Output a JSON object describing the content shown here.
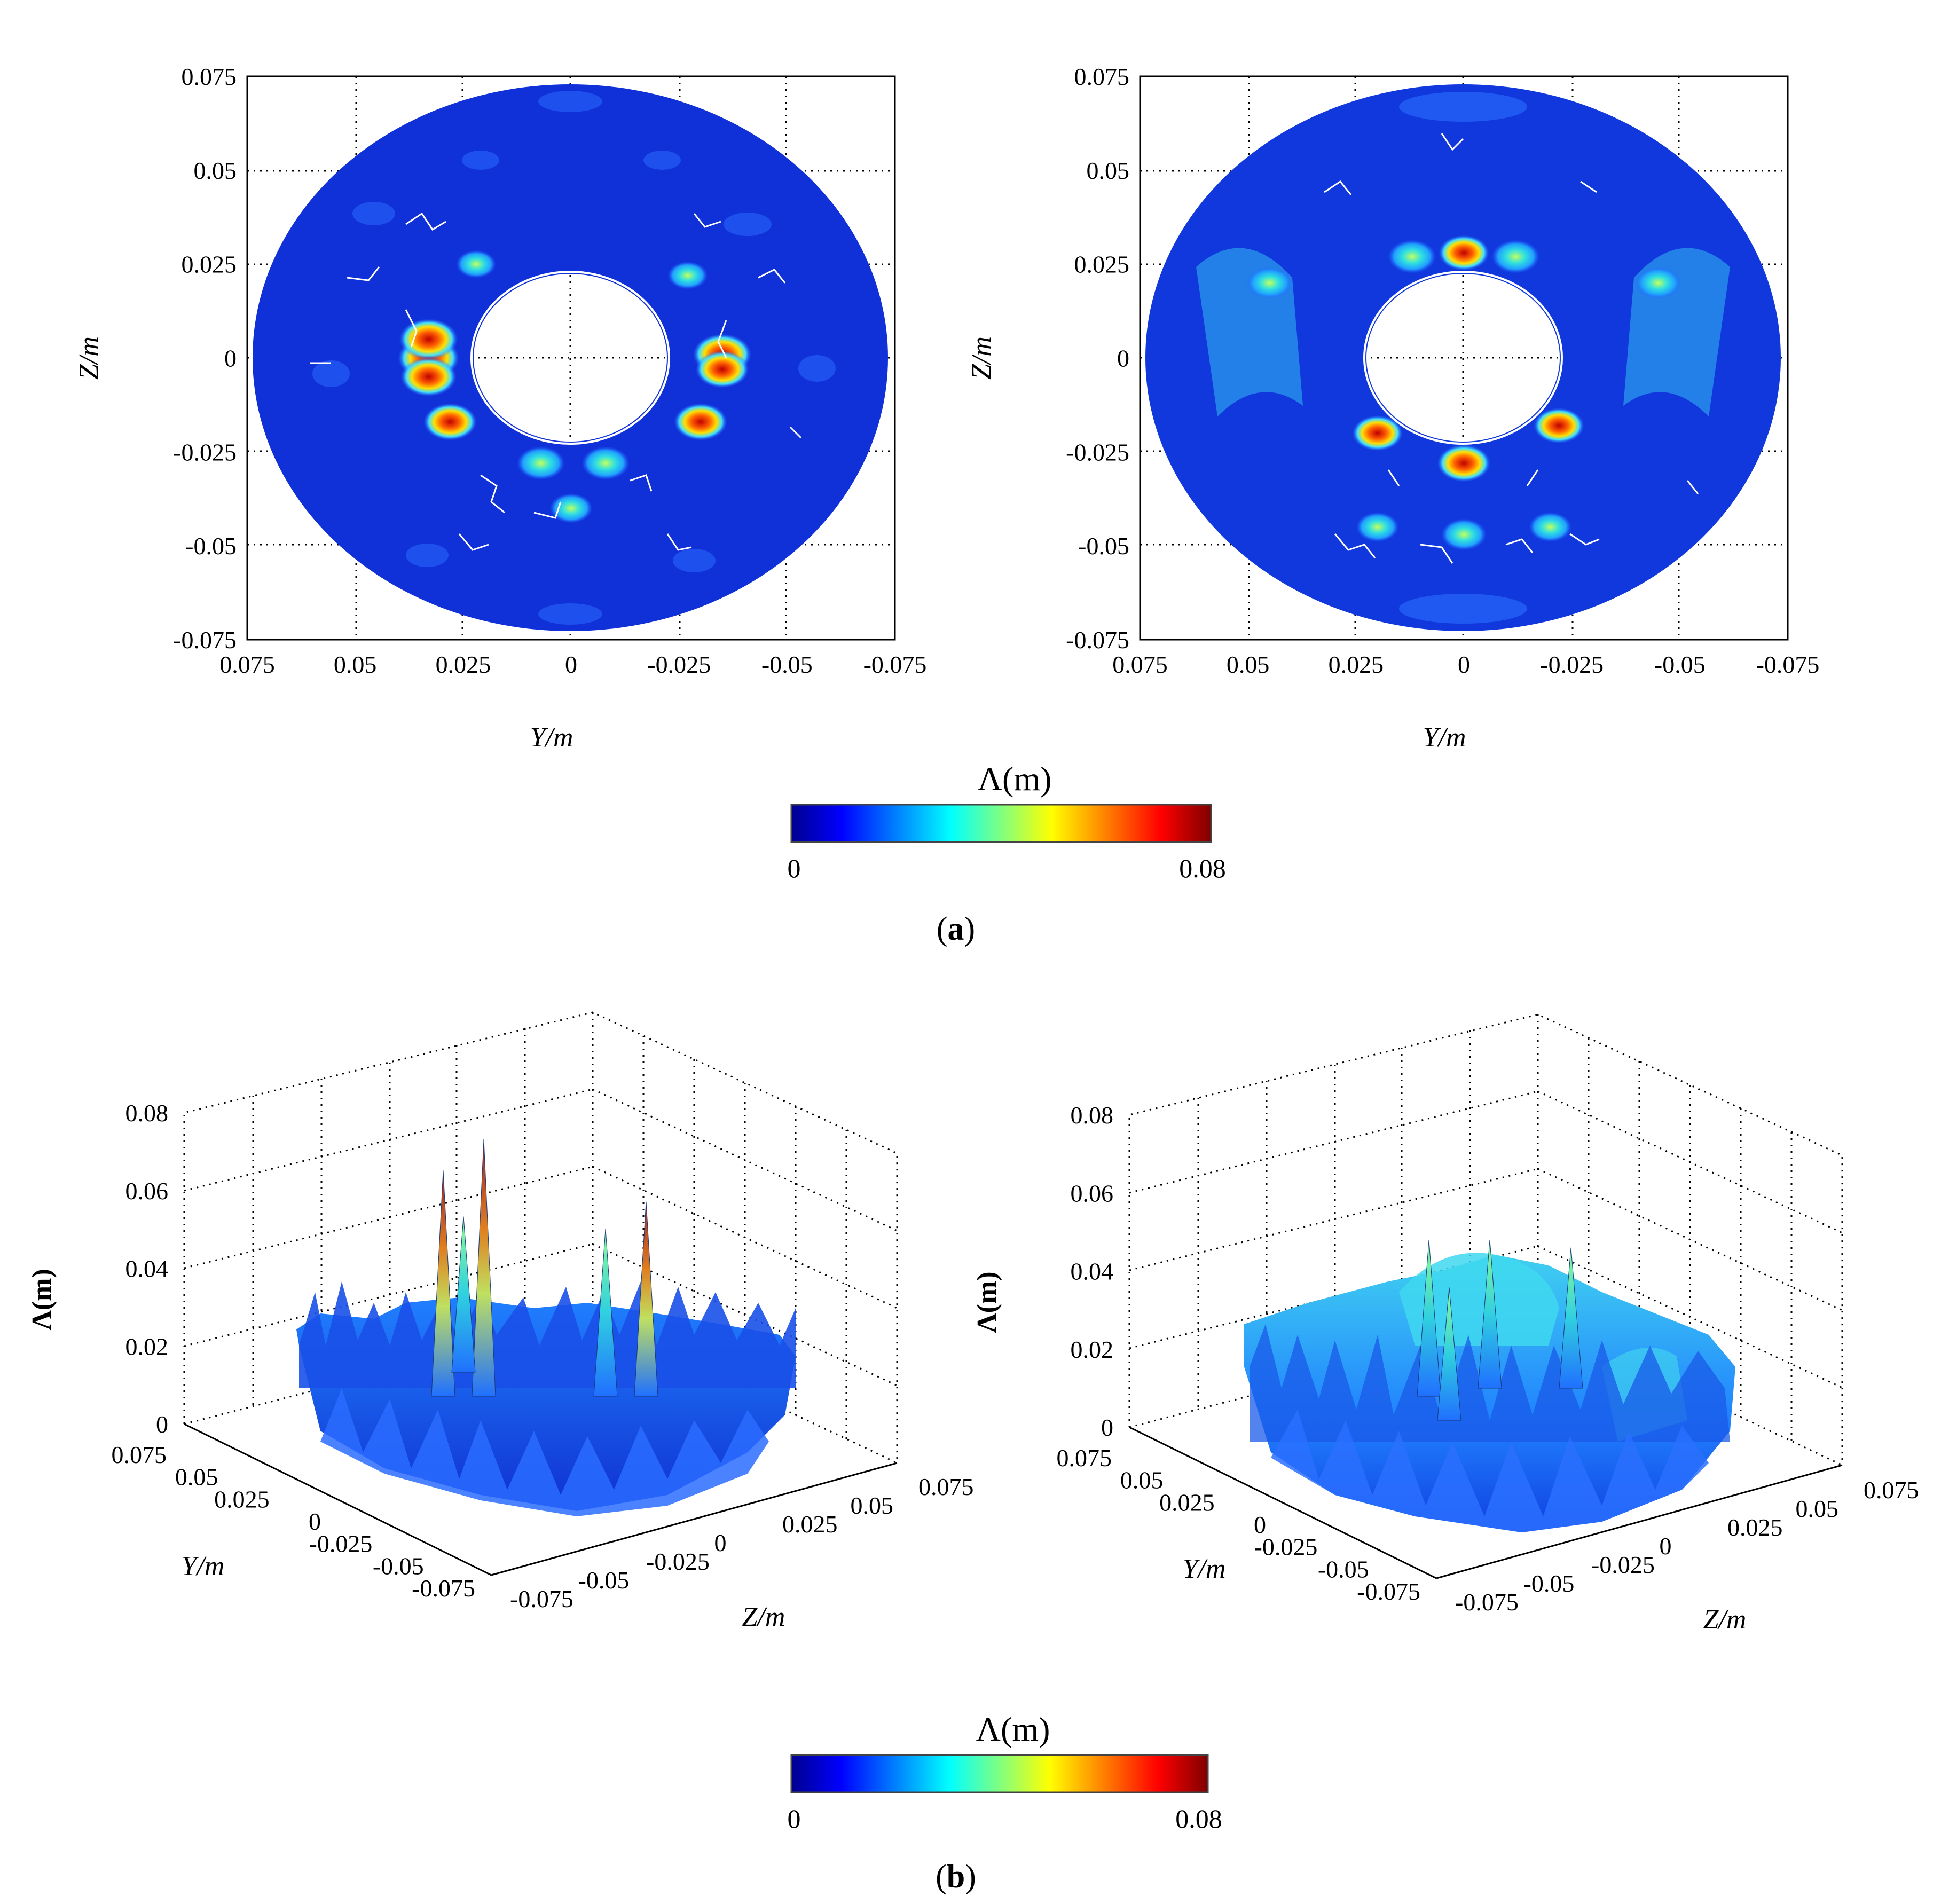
{
  "chart_data": [
    {
      "id": "a-left",
      "type": "heatmap",
      "panel": "a",
      "title": "",
      "xlabel": "Y/m",
      "ylabel": "Z/m",
      "xlim": [
        0.075,
        -0.075
      ],
      "ylim": [
        -0.075,
        0.075
      ],
      "x_ticks": [
        "0.075",
        "0.05",
        "0.025",
        "0",
        "-0.025",
        "-0.05",
        "-0.075"
      ],
      "y_ticks": [
        "0.075",
        "0.05",
        "0.025",
        "0",
        "-0.025",
        "-0.05",
        "-0.075"
      ],
      "outer_radius_m": 0.073,
      "inner_radius_m": 0.022,
      "hotspots": [
        {
          "y": 0.033,
          "z": 0.0,
          "value": 0.075
        },
        {
          "y": 0.033,
          "z": 0.005,
          "value": 0.07
        },
        {
          "y": 0.033,
          "z": -0.005,
          "value": 0.065
        },
        {
          "y": -0.035,
          "z": 0.001,
          "value": 0.07
        },
        {
          "y": -0.035,
          "z": -0.003,
          "value": 0.06
        },
        {
          "y": 0.028,
          "z": -0.017,
          "value": 0.06
        },
        {
          "y": -0.03,
          "z": -0.017,
          "value": 0.06
        },
        {
          "y": 0.007,
          "z": -0.028,
          "value": 0.05
        },
        {
          "y": -0.008,
          "z": -0.028,
          "value": 0.05
        },
        {
          "y": 0.0,
          "z": -0.04,
          "value": 0.04
        },
        {
          "y": -0.027,
          "z": 0.022,
          "value": 0.035
        },
        {
          "y": 0.022,
          "z": 0.025,
          "value": 0.035
        }
      ]
    },
    {
      "id": "a-right",
      "type": "heatmap",
      "panel": "a",
      "title": "",
      "xlabel": "Y/m",
      "ylabel": "Z/m",
      "xlim": [
        0.075,
        -0.075
      ],
      "ylim": [
        -0.075,
        0.075
      ],
      "x_ticks": [
        "0.075",
        "0.05",
        "0.025",
        "0",
        "-0.025",
        "-0.05",
        "-0.075"
      ],
      "y_ticks": [
        "0.075",
        "0.05",
        "0.025",
        "0",
        "-0.025",
        "-0.05",
        "-0.075"
      ],
      "outer_radius_m": 0.073,
      "inner_radius_m": 0.022,
      "hotspots": [
        {
          "y": 0.045,
          "z": 0.02,
          "value": 0.045
        },
        {
          "y": -0.045,
          "z": 0.02,
          "value": 0.045
        },
        {
          "y": 0.02,
          "z": -0.02,
          "value": 0.055
        },
        {
          "y": -0.022,
          "z": -0.018,
          "value": 0.055
        },
        {
          "y": 0.0,
          "z": -0.028,
          "value": 0.06
        },
        {
          "y": 0.0,
          "z": 0.028,
          "value": 0.055
        },
        {
          "y": 0.012,
          "z": 0.027,
          "value": 0.05
        },
        {
          "y": -0.012,
          "z": 0.027,
          "value": 0.05
        },
        {
          "y": 0.0,
          "z": -0.047,
          "value": 0.045
        },
        {
          "y": -0.02,
          "z": -0.045,
          "value": 0.04
        },
        {
          "y": 0.02,
          "z": -0.045,
          "value": 0.04
        }
      ]
    },
    {
      "id": "b-left",
      "type": "surface3d",
      "panel": "b",
      "xlabel": "Y/m",
      "ylabel": "Z/m",
      "zlabel": "Λ(m)",
      "zlim": [
        0,
        0.08
      ],
      "y_ticks": [
        "0.075",
        "0.05",
        "0.025",
        "0",
        "-0.025",
        "-0.05",
        "-0.075"
      ],
      "z_ticks": [
        "-0.075",
        "-0.05",
        "-0.025",
        "0",
        "0.025",
        "0.05",
        "0.075"
      ],
      "vert_ticks": [
        "0",
        "0.02",
        "0.04",
        "0.06",
        "0.08"
      ],
      "peaks": [
        {
          "y": 0.03,
          "z": -0.02,
          "value": 0.058
        },
        {
          "y": 0.02,
          "z": -0.01,
          "value": 0.066
        },
        {
          "y": -0.01,
          "z": 0.02,
          "value": 0.043
        },
        {
          "y": -0.02,
          "z": 0.03,
          "value": 0.05
        },
        {
          "y": 0.01,
          "z": -0.03,
          "value": 0.04
        }
      ]
    },
    {
      "id": "b-right",
      "type": "surface3d",
      "panel": "b",
      "xlabel": "Y/m",
      "ylabel": "Z/m",
      "zlabel": "Λ(m)",
      "zlim": [
        0,
        0.08
      ],
      "y_ticks": [
        "0.075",
        "0.05",
        "0.025",
        "0",
        "-0.025",
        "-0.05",
        "-0.075"
      ],
      "z_ticks": [
        "-0.075",
        "-0.05",
        "-0.025",
        "0",
        "0.025",
        "0.05",
        "0.075"
      ],
      "vert_ticks": [
        "0",
        "0.02",
        "0.04",
        "0.06",
        "0.08"
      ],
      "peaks": [
        {
          "y": 0.02,
          "z": -0.01,
          "value": 0.04
        },
        {
          "y": 0.0,
          "z": 0.0,
          "value": 0.038
        },
        {
          "y": -0.02,
          "z": 0.02,
          "value": 0.036
        },
        {
          "y": 0.03,
          "z": 0.01,
          "value": 0.034
        }
      ]
    }
  ],
  "colorbars": {
    "a": {
      "label": "Λ(m)",
      "min": "0",
      "max": "0.08"
    },
    "b": {
      "label": "Λ(m)",
      "min": "0",
      "max": "0.08"
    }
  },
  "captions": {
    "a": "a",
    "b": "b"
  },
  "colors": {
    "colormap": [
      "#00008f",
      "#0000ff",
      "#0080ff",
      "#00ffff",
      "#80ff80",
      "#ffff00",
      "#ff8000",
      "#ff0000",
      "#800000"
    ],
    "field_base": "#1030d8"
  }
}
